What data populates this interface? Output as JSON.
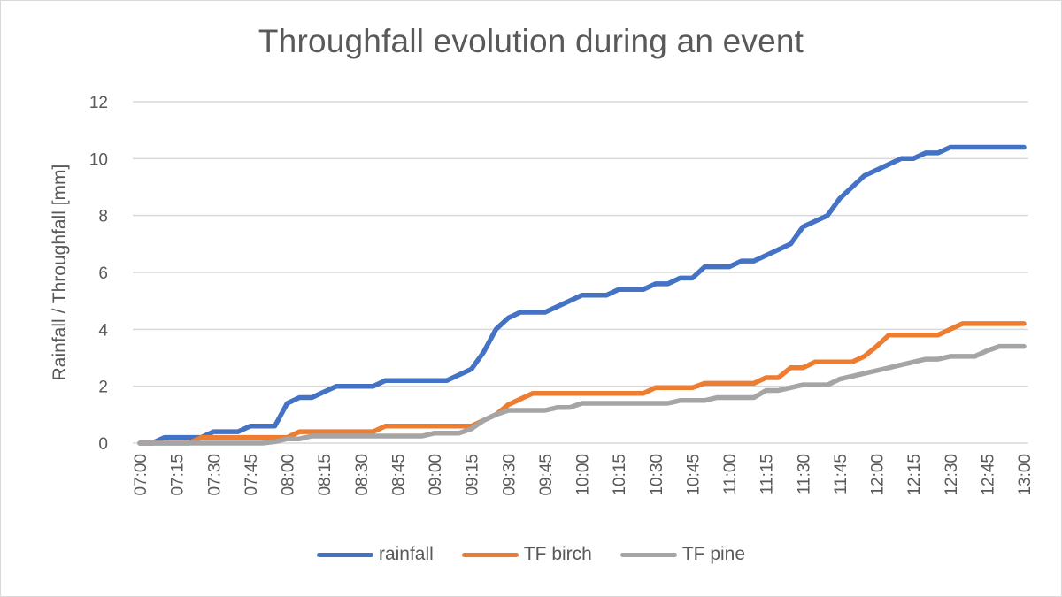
{
  "chart_data": {
    "type": "line",
    "title": "Throughfall evolution during an event",
    "xlabel": "",
    "ylabel": "Rainfall / Throughfall [mm]",
    "ylim": [
      0,
      12
    ],
    "yticks": [
      "0",
      "2",
      "4",
      "6",
      "8",
      "10",
      "12"
    ],
    "grid": true,
    "legend_position": "bottom",
    "x_step_minutes": 5,
    "x_start": "07:00",
    "x_end": "13:00",
    "x_tick_labels": [
      "07:00",
      "07:15",
      "07:30",
      "07:45",
      "08:00",
      "08:15",
      "08:30",
      "08:45",
      "09:00",
      "09:15",
      "09:30",
      "09:45",
      "10:00",
      "10:15",
      "10:30",
      "10:45",
      "11:00",
      "11:15",
      "11:30",
      "11:45",
      "12:00",
      "12:15",
      "12:30",
      "12:45",
      "13:00"
    ],
    "x": [
      "07:00",
      "07:05",
      "07:10",
      "07:15",
      "07:20",
      "07:25",
      "07:30",
      "07:35",
      "07:40",
      "07:45",
      "07:50",
      "07:55",
      "08:00",
      "08:05",
      "08:10",
      "08:15",
      "08:20",
      "08:25",
      "08:30",
      "08:35",
      "08:40",
      "08:45",
      "08:50",
      "08:55",
      "09:00",
      "09:05",
      "09:10",
      "09:15",
      "09:20",
      "09:25",
      "09:30",
      "09:35",
      "09:40",
      "09:45",
      "09:50",
      "09:55",
      "10:00",
      "10:05",
      "10:10",
      "10:15",
      "10:20",
      "10:25",
      "10:30",
      "10:35",
      "10:40",
      "10:45",
      "10:50",
      "10:55",
      "11:00",
      "11:05",
      "11:10",
      "11:15",
      "11:20",
      "11:25",
      "11:30",
      "11:35",
      "11:40",
      "11:45",
      "11:50",
      "11:55",
      "12:00",
      "12:05",
      "12:10",
      "12:15",
      "12:20",
      "12:25",
      "12:30",
      "12:35",
      "12:40",
      "12:45",
      "12:50",
      "12:55",
      "13:00"
    ],
    "series": [
      {
        "name": "rainfall",
        "color": "#4472c4",
        "values": [
          0,
          0,
          0.2,
          0.2,
          0.2,
          0.2,
          0.4,
          0.4,
          0.4,
          0.6,
          0.6,
          0.6,
          1.4,
          1.6,
          1.6,
          1.8,
          2.0,
          2.0,
          2.0,
          2.0,
          2.2,
          2.2,
          2.2,
          2.2,
          2.2,
          2.2,
          2.4,
          2.6,
          3.2,
          4.0,
          4.4,
          4.6,
          4.6,
          4.6,
          4.8,
          5.0,
          5.2,
          5.2,
          5.2,
          5.4,
          5.4,
          5.4,
          5.6,
          5.6,
          5.8,
          5.8,
          6.2,
          6.2,
          6.2,
          6.4,
          6.4,
          6.6,
          6.8,
          7.0,
          7.6,
          7.8,
          8.0,
          8.6,
          9.0,
          9.4,
          9.6,
          9.8,
          10.0,
          10.0,
          10.2,
          10.2,
          10.4,
          10.4,
          10.4,
          10.4,
          10.4,
          10.4,
          10.4
        ]
      },
      {
        "name": "TF birch",
        "color": "#ed7d31",
        "values": [
          0,
          0,
          0,
          0,
          0,
          0.2,
          0.2,
          0.2,
          0.2,
          0.2,
          0.2,
          0.2,
          0.2,
          0.4,
          0.4,
          0.4,
          0.4,
          0.4,
          0.4,
          0.4,
          0.6,
          0.6,
          0.6,
          0.6,
          0.6,
          0.6,
          0.6,
          0.6,
          0.8,
          1.0,
          1.35,
          1.55,
          1.75,
          1.75,
          1.75,
          1.75,
          1.75,
          1.75,
          1.75,
          1.75,
          1.75,
          1.75,
          1.95,
          1.95,
          1.95,
          1.95,
          2.1,
          2.1,
          2.1,
          2.1,
          2.1,
          2.3,
          2.3,
          2.65,
          2.65,
          2.85,
          2.85,
          2.85,
          2.85,
          3.05,
          3.4,
          3.8,
          3.8,
          3.8,
          3.8,
          3.8,
          4.0,
          4.2,
          4.2,
          4.2,
          4.2,
          4.2,
          4.2
        ]
      },
      {
        "name": "TF pine",
        "color": "#a5a5a5",
        "values": [
          0,
          0,
          0,
          0,
          0,
          0,
          0,
          0,
          0,
          0,
          0,
          0.05,
          0.15,
          0.15,
          0.25,
          0.25,
          0.25,
          0.25,
          0.25,
          0.25,
          0.25,
          0.25,
          0.25,
          0.25,
          0.35,
          0.35,
          0.35,
          0.5,
          0.8,
          1.0,
          1.15,
          1.15,
          1.15,
          1.15,
          1.25,
          1.25,
          1.4,
          1.4,
          1.4,
          1.4,
          1.4,
          1.4,
          1.4,
          1.4,
          1.5,
          1.5,
          1.5,
          1.6,
          1.6,
          1.6,
          1.6,
          1.85,
          1.85,
          1.95,
          2.05,
          2.05,
          2.05,
          2.25,
          2.35,
          2.45,
          2.55,
          2.65,
          2.75,
          2.85,
          2.95,
          2.95,
          3.05,
          3.05,
          3.05,
          3.25,
          3.4,
          3.4,
          3.4
        ]
      }
    ]
  }
}
